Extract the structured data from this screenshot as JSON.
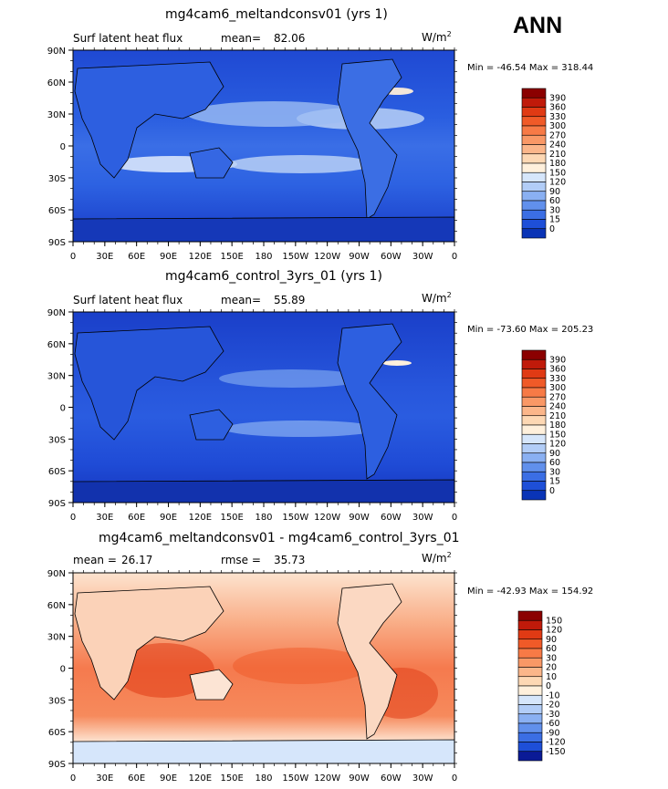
{
  "season": "ANN",
  "chart_data": [
    {
      "type": "heatmap",
      "title": "mg4cam6_meltandconsv01 (yrs 1)",
      "variable": "Surf latent heat flux",
      "stat_label": "mean=",
      "stat_value": "82.06",
      "units": "W/m",
      "units_exp": "2",
      "min_max": "Min = -46.54  Max = 318.44",
      "y_ticks": [
        "90N",
        "60N",
        "30N",
        "0",
        "30S",
        "60S",
        "90S"
      ],
      "x_ticks": [
        "0",
        "30E",
        "60E",
        "90E",
        "120E",
        "150E",
        "180",
        "150W",
        "120W",
        "90W",
        "60W",
        "30W",
        "0"
      ],
      "colorbar_labels": [
        "390",
        "360",
        "330",
        "300",
        "270",
        "240",
        "210",
        "180",
        "150",
        "120",
        "90",
        "60",
        "30",
        "15",
        "0"
      ],
      "colorbar_colors": [
        "#8b0000",
        "#c01a0a",
        "#e03a14",
        "#f05a28",
        "#f77a46",
        "#f99866",
        "#fbb68a",
        "#fdd8b4",
        "#fff0dc",
        "#d6e6fb",
        "#b2cdf7",
        "#8ab0f2",
        "#6190ec",
        "#3b6ee4",
        "#1e4fd8",
        "#0a34b6"
      ]
    },
    {
      "type": "heatmap",
      "title": "mg4cam6_control_3yrs_01 (yrs 1)",
      "variable": "Surf latent heat flux",
      "stat_label": "mean=",
      "stat_value": "55.89",
      "units": "W/m",
      "units_exp": "2",
      "min_max": "Min = -73.60  Max = 205.23",
      "y_ticks": [
        "90N",
        "60N",
        "30N",
        "0",
        "30S",
        "60S",
        "90S"
      ],
      "x_ticks": [
        "0",
        "30E",
        "60E",
        "90E",
        "120E",
        "150E",
        "180",
        "150W",
        "120W",
        "90W",
        "60W",
        "30W",
        "0"
      ],
      "colorbar_labels": [
        "390",
        "360",
        "330",
        "300",
        "270",
        "240",
        "210",
        "180",
        "150",
        "120",
        "90",
        "60",
        "30",
        "15",
        "0"
      ],
      "colorbar_colors": [
        "#8b0000",
        "#c01a0a",
        "#e03a14",
        "#f05a28",
        "#f77a46",
        "#f99866",
        "#fbb68a",
        "#fdd8b4",
        "#fff0dc",
        "#d6e6fb",
        "#b2cdf7",
        "#8ab0f2",
        "#6190ec",
        "#3b6ee4",
        "#1e4fd8",
        "#0a34b6"
      ]
    },
    {
      "type": "heatmap",
      "title": "mg4cam6_meltandconsv01 - mg4cam6_control_3yrs_01",
      "stat_label": "mean =",
      "stat_value": "26.17",
      "rmse_label": "rmse =",
      "rmse_value": "35.73",
      "units": "W/m",
      "units_exp": "2",
      "min_max": "Min = -42.93  Max = 154.92",
      "y_ticks": [
        "90N",
        "60N",
        "30N",
        "0",
        "30S",
        "60S",
        "90S"
      ],
      "x_ticks": [
        "0",
        "30E",
        "60E",
        "90E",
        "120E",
        "150E",
        "180",
        "150W",
        "120W",
        "90W",
        "60W",
        "30W",
        "0"
      ],
      "colorbar_labels": [
        "150",
        "120",
        "90",
        "60",
        "30",
        "20",
        "10",
        "0",
        "-10",
        "-20",
        "-30",
        "-60",
        "-90",
        "-120",
        "-150"
      ],
      "colorbar_colors": [
        "#8b0000",
        "#c01a0a",
        "#e03a14",
        "#f05a28",
        "#f77a46",
        "#f99866",
        "#fbb68a",
        "#fdd8b4",
        "#fff0dc",
        "#d6e6fb",
        "#b2cdf7",
        "#8ab0f2",
        "#6190ec",
        "#3b6ee4",
        "#1e4fd8",
        "#0a1a96"
      ]
    }
  ]
}
